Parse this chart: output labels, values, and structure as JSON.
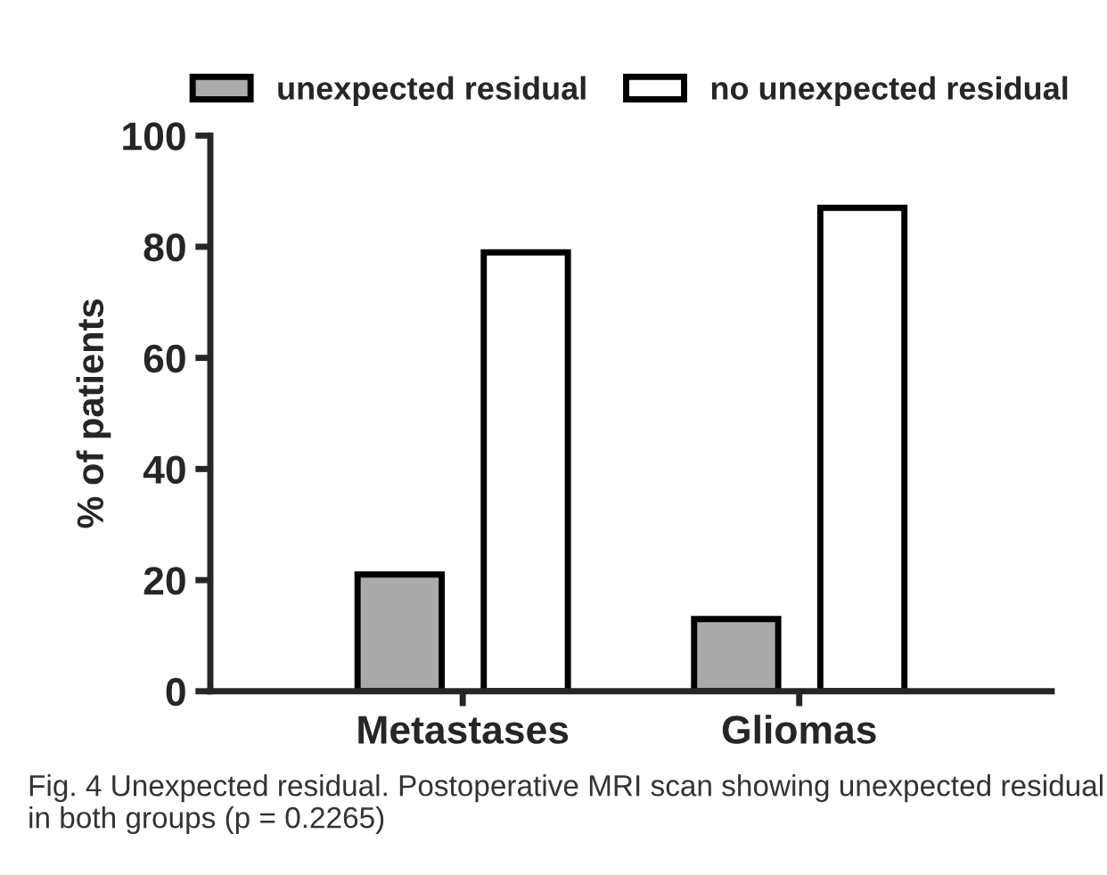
{
  "chart_data": {
    "type": "bar",
    "categories": [
      "Metastases",
      "Gliomas"
    ],
    "ylabel": "% of patients",
    "series": [
      {
        "name": "unexpected residual",
        "color": "#aaaaaa",
        "values": [
          21,
          13
        ]
      },
      {
        "name": "no unexpected residual",
        "color": "#ffffff",
        "values": [
          79,
          87
        ]
      }
    ],
    "ylim": [
      0,
      100
    ],
    "yticks": [
      0,
      20,
      40,
      60,
      80,
      100
    ],
    "grid": false,
    "legend": "top",
    "annotations": [
      "Fig. 4 Unexpected residual. Postoperative MRI scan showing unexpected residual in both groups (p = 0.2265)"
    ]
  }
}
